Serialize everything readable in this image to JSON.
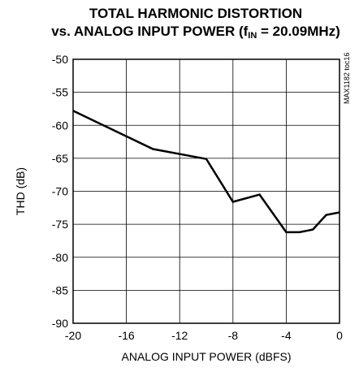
{
  "chart_data": {
    "type": "line",
    "title_line1": "TOTAL HARMONIC DISTORTION",
    "title_line2_prefix": "vs. ANALOG INPUT POWER (f",
    "title_line2_sub": "IN",
    "title_line2_suffix": " = 20.09MHz)",
    "xlabel": "ANALOG INPUT POWER (dBFS)",
    "ylabel": "THD (dB)",
    "xlim": [
      -20,
      0
    ],
    "ylim": [
      -90,
      -50
    ],
    "xticks": [
      -20,
      -16,
      -12,
      -8,
      -4,
      0
    ],
    "yticks": [
      -50,
      -55,
      -60,
      -65,
      -70,
      -75,
      -80,
      -85,
      -90
    ],
    "grid": true,
    "annotation": "MAX1182 toc16",
    "series": [
      {
        "color": "#000000",
        "x": [
          -20,
          -14,
          -10,
          -8,
          -6,
          -4,
          -3,
          -2,
          -1,
          0
        ],
        "y": [
          -57.8,
          -63.6,
          -65.1,
          -71.6,
          -70.5,
          -76.2,
          -76.2,
          -75.8,
          -73.6,
          -73.2
        ]
      }
    ]
  }
}
